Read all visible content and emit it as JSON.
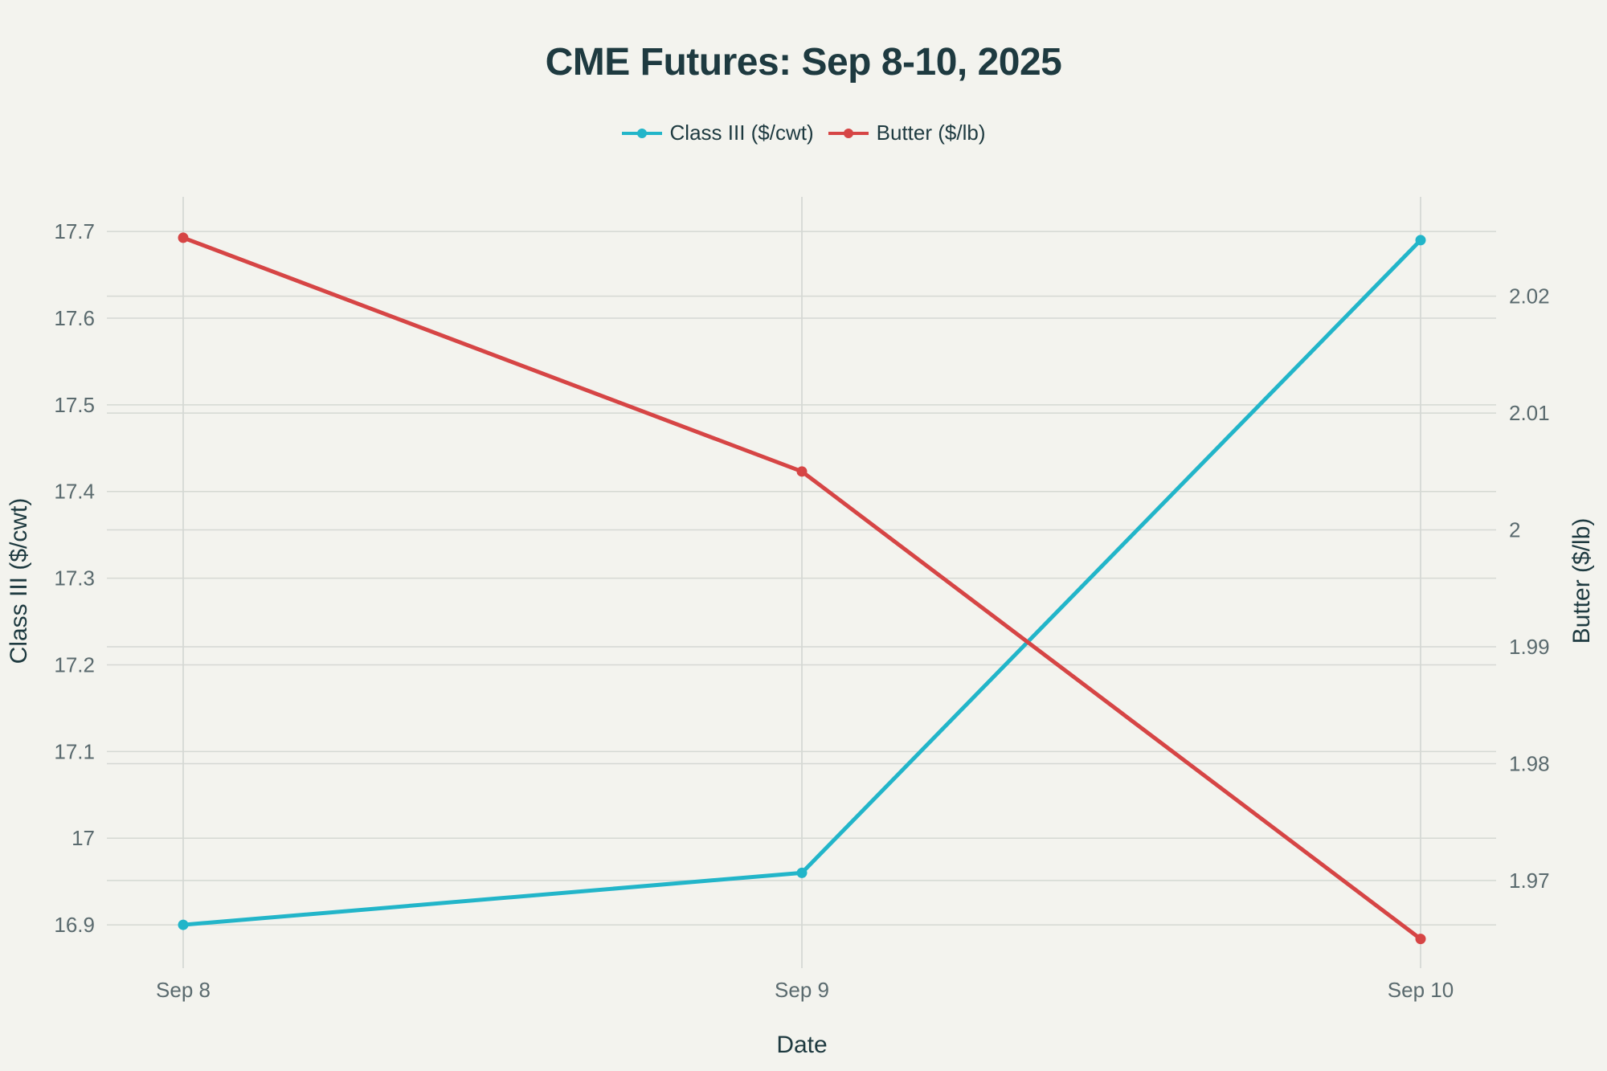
{
  "chart_data": {
    "type": "line",
    "title": "CME Futures: Sep 8-10, 2025",
    "xlabel": "Date",
    "ylabel": "Class III ($/cwt)",
    "y2label": "Butter ($/lb)",
    "categories": [
      "Sep 8",
      "Sep 9",
      "Sep 10"
    ],
    "ylim": [
      16.85,
      17.74
    ],
    "y2lim": [
      1.9625,
      2.0285
    ],
    "yticks": [
      16.9,
      17,
      17.1,
      17.2,
      17.3,
      17.4,
      17.5,
      17.6,
      17.7
    ],
    "y2ticks": [
      1.97,
      1.98,
      1.99,
      2,
      2.01,
      2.02
    ],
    "grid": true,
    "legend_position": "top-center",
    "series": [
      {
        "name": "Class III ($/cwt)",
        "axis": "left",
        "color": "#22b5c9",
        "values": [
          16.9,
          16.96,
          17.69
        ]
      },
      {
        "name": "Butter ($/lb)",
        "axis": "right",
        "color": "#d64545",
        "values": [
          2.025,
          2.005,
          1.965
        ]
      }
    ]
  }
}
